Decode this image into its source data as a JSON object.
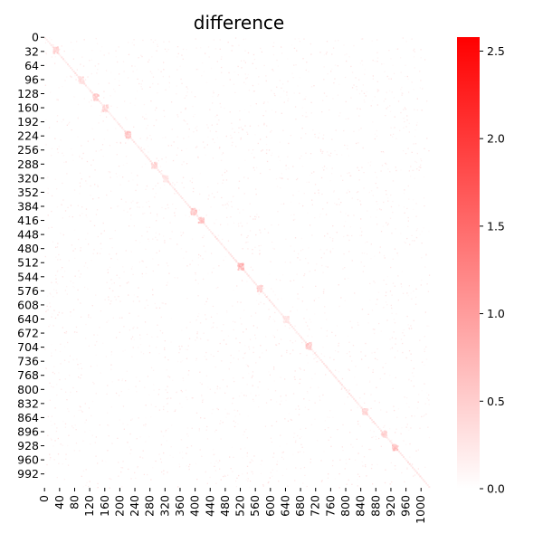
{
  "chart_data": {
    "type": "heatmap",
    "title": "difference",
    "xlabel": "",
    "ylabel": "",
    "matrix_size": 1024,
    "x_ticks": [
      "0",
      "40",
      "80",
      "120",
      "160",
      "200",
      "240",
      "280",
      "320",
      "360",
      "400",
      "440",
      "480",
      "520",
      "560",
      "600",
      "640",
      "680",
      "720",
      "760",
      "800",
      "840",
      "880",
      "920",
      "960",
      "1000"
    ],
    "x_tick_values": [
      0,
      40,
      80,
      120,
      160,
      200,
      240,
      280,
      320,
      360,
      400,
      440,
      480,
      520,
      560,
      600,
      640,
      680,
      720,
      760,
      800,
      840,
      880,
      920,
      960,
      1000
    ],
    "y_ticks": [
      "0",
      "32",
      "64",
      "96",
      "128",
      "160",
      "192",
      "224",
      "256",
      "288",
      "320",
      "352",
      "384",
      "416",
      "448",
      "480",
      "512",
      "544",
      "576",
      "608",
      "640",
      "672",
      "704",
      "736",
      "768",
      "800",
      "832",
      "864",
      "896",
      "928",
      "960",
      "992"
    ],
    "y_tick_values": [
      0,
      32,
      64,
      96,
      128,
      160,
      192,
      224,
      256,
      288,
      320,
      352,
      384,
      416,
      448,
      480,
      512,
      544,
      576,
      608,
      640,
      672,
      704,
      736,
      768,
      800,
      832,
      864,
      896,
      928,
      960,
      992
    ],
    "colorbar": {
      "min": 0.0,
      "max": 2.58,
      "ticks": [
        "0.0",
        "0.5",
        "1.0",
        "1.5",
        "2.0",
        "2.5"
      ],
      "tick_values": [
        0.0,
        0.5,
        1.0,
        1.5,
        2.0,
        2.5
      ],
      "color_low": "#ffffff",
      "color_high": "#ff0000"
    },
    "diagonal_clusters": [
      {
        "center": 28,
        "value": 0.45
      },
      {
        "center": 96,
        "value": 0.35
      },
      {
        "center": 135,
        "value": 0.55
      },
      {
        "center": 160,
        "value": 0.45
      },
      {
        "center": 220,
        "value": 0.6
      },
      {
        "center": 290,
        "value": 0.45
      },
      {
        "center": 320,
        "value": 0.3
      },
      {
        "center": 395,
        "value": 0.6
      },
      {
        "center": 415,
        "value": 0.65
      },
      {
        "center": 520,
        "value": 0.8
      },
      {
        "center": 570,
        "value": 0.5
      },
      {
        "center": 640,
        "value": 0.3
      },
      {
        "center": 700,
        "value": 0.6
      },
      {
        "center": 850,
        "value": 0.45
      },
      {
        "center": 900,
        "value": 0.5
      },
      {
        "center": 930,
        "value": 0.65
      }
    ],
    "background_value": 0.05,
    "grid": false,
    "legend": "none"
  }
}
